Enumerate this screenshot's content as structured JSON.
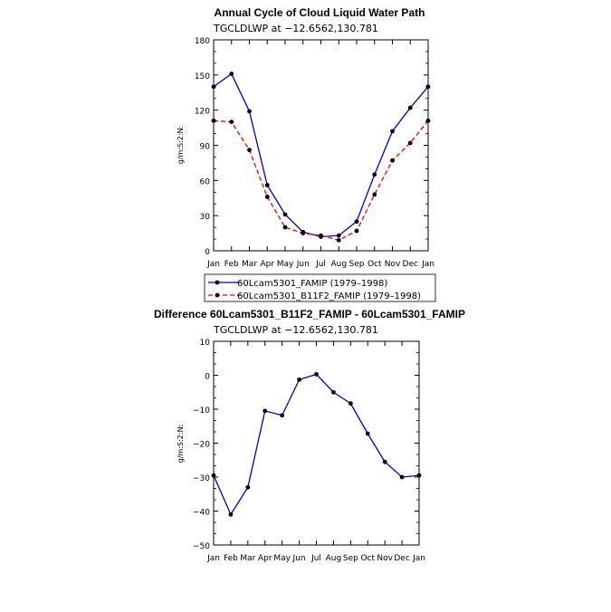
{
  "months": [
    "Jan",
    "Feb",
    "Mar",
    "Apr",
    "May",
    "Jun",
    "Jul",
    "Aug",
    "Sep",
    "Oct",
    "Nov",
    "Dec",
    "Jan"
  ],
  "chart_data": [
    {
      "type": "line",
      "title": "Annual Cycle of Cloud Liquid Water Path",
      "subtitle": "TGCLDLWP  at  −12.6562,130.781",
      "ylabel": "g/m:S:2:N:",
      "xlabel": "",
      "ylim": [
        0,
        180
      ],
      "yticks": [
        "0",
        "30",
        "60",
        "90",
        "120",
        "150",
        "180"
      ],
      "categories": [
        "Jan",
        "Feb",
        "Mar",
        "Apr",
        "May",
        "Jun",
        "Jul",
        "Aug",
        "Sep",
        "Oct",
        "Nov",
        "Dec",
        "Jan"
      ],
      "series": [
        {
          "name": "60Lcam5301_FAMIP (1979–1998)",
          "color": "#0000cc",
          "dash": "solid",
          "values": [
            140,
            151,
            119,
            56,
            31,
            16,
            12,
            13,
            25,
            65,
            102,
            122,
            140
          ]
        },
        {
          "name": "60Lcam5301_B11F2_FAMIP (1979–1998)",
          "color": "#ee0000",
          "dash": "dashed",
          "values": [
            111,
            110,
            86,
            46,
            20,
            15,
            13,
            9,
            17,
            48,
            77,
            92,
            111
          ]
        }
      ],
      "legend_position": "bottom"
    },
    {
      "type": "line",
      "title": "Difference 60Lcam5301_B11F2_FAMIP - 60Lcam5301_FAMIP",
      "subtitle": "TGCLDLWP  at  −12.6562,130.781",
      "ylabel": "g/m:S:2:N:",
      "xlabel": "",
      "ylim": [
        -50,
        10
      ],
      "yticks": [
        "−50",
        "−40",
        "−30",
        "−20",
        "−10",
        "0",
        "10"
      ],
      "categories": [
        "Jan",
        "Feb",
        "Mar",
        "Apr",
        "May",
        "Jun",
        "Jul",
        "Aug",
        "Sep",
        "Oct",
        "Nov",
        "Dec",
        "Jan"
      ],
      "series": [
        {
          "name": "Difference",
          "color": "#0000cc",
          "dash": "solid",
          "values": [
            -29.5,
            -41,
            -33,
            -10.5,
            -11.8,
            -1.3,
            0.3,
            -5,
            -8.3,
            -17.2,
            -25.5,
            -30,
            -29.5
          ]
        }
      ]
    }
  ]
}
